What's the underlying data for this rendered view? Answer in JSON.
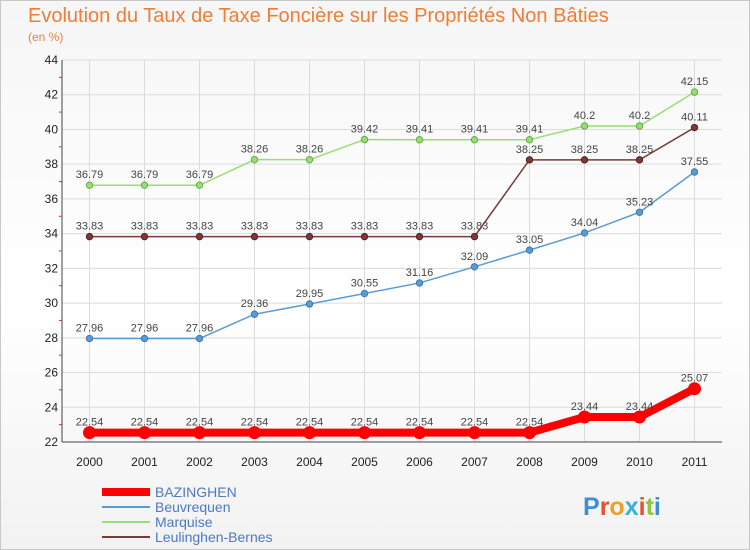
{
  "title": "Evolution du Taux de Taxe Foncière sur les Propriétés Non Bâties",
  "unit_label": "(en %)",
  "logo_text": "Proxiti",
  "chart_data": {
    "type": "line",
    "x": [
      "2000",
      "2001",
      "2002",
      "2003",
      "2004",
      "2005",
      "2006",
      "2007",
      "2008",
      "2009",
      "2010",
      "2011"
    ],
    "ylim": [
      22,
      44
    ],
    "y_ticks": [
      22,
      24,
      26,
      28,
      30,
      32,
      34,
      36,
      38,
      40,
      42,
      44
    ],
    "grid": true,
    "legend_position": "bottom-left",
    "series": [
      {
        "name": "BAZINGHEN",
        "color": "#ff0000",
        "width": 8,
        "labels": [
          "22.54",
          "22.54",
          "22.54",
          "22.54",
          "22.54",
          "22.54",
          "22.54",
          "22.54",
          "22.54",
          "23.44",
          "23.44",
          "25.07"
        ],
        "values": [
          22.54,
          22.54,
          22.54,
          22.54,
          22.54,
          22.54,
          22.54,
          22.54,
          22.54,
          23.44,
          23.44,
          25.07
        ]
      },
      {
        "name": "Beuvrequen",
        "color": "#5b9bd5",
        "width": 1.5,
        "labels": [
          "27.96",
          "27.96",
          "27.96",
          "29.36",
          "29.95",
          "30.55",
          "31.16",
          "32.09",
          "33.05",
          "34.04",
          "35.23",
          "37.55"
        ],
        "values": [
          27.96,
          27.96,
          27.96,
          29.36,
          29.95,
          30.55,
          31.16,
          32.09,
          33.05,
          34.04,
          35.23,
          37.55
        ]
      },
      {
        "name": "Marquise",
        "color": "#99dd77",
        "width": 1.5,
        "labels": [
          "36.79",
          "36.79",
          "36.79",
          "38.26",
          "38.26",
          "39.42",
          "39.41",
          "39.41",
          "39.41",
          "40.2",
          "40.2",
          "42.15"
        ],
        "values": [
          36.79,
          36.79,
          36.79,
          38.26,
          38.26,
          39.42,
          39.41,
          39.41,
          39.41,
          40.2,
          40.2,
          42.15
        ]
      },
      {
        "name": "Leulinghen-Bernes",
        "color": "#7a3a3a",
        "width": 1.5,
        "labels": [
          "33.83",
          "33.83",
          "33.83",
          "33.83",
          "33.83",
          "33.83",
          "33.83",
          "33.83",
          "38.25",
          "38.25",
          "38.25",
          "40.11"
        ],
        "values": [
          33.83,
          33.83,
          33.83,
          33.83,
          33.83,
          33.83,
          33.83,
          33.83,
          38.25,
          38.25,
          38.25,
          40.11
        ]
      }
    ]
  }
}
